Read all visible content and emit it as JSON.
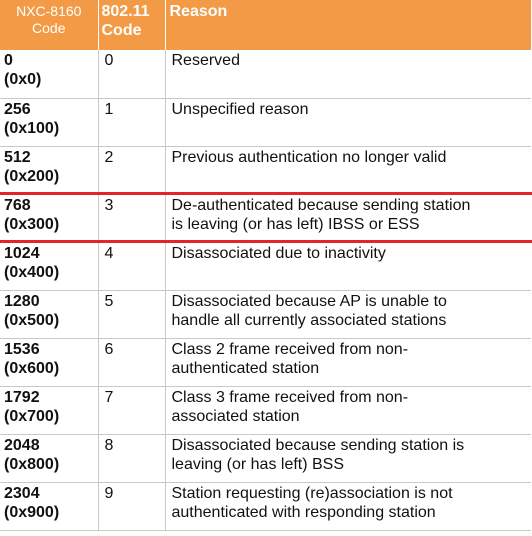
{
  "header": {
    "col1": [
      "NXC-8160",
      "Code"
    ],
    "col2": [
      "802.11",
      "Code"
    ],
    "col3": "Reason"
  },
  "rows": [
    {
      "dec": "0",
      "hex": "(0x0)",
      "code": "0",
      "reason": [
        "Reserved"
      ]
    },
    {
      "dec": "256",
      "hex": "(0x100)",
      "code": "1",
      "reason": [
        "Unspecified reason"
      ]
    },
    {
      "dec": "512",
      "hex": "(0x200)",
      "code": "2",
      "reason": [
        "Previous authentication no longer valid"
      ]
    },
    {
      "dec": "768",
      "hex": "(0x300)",
      "code": "3",
      "reason": [
        "De-authenticated because sending station",
        "is leaving (or has left) IBSS or ESS"
      ]
    },
    {
      "dec": "1024",
      "hex": "(0x400)",
      "code": "4",
      "reason": [
        "Disassociated due to inactivity"
      ]
    },
    {
      "dec": "1280",
      "hex": "(0x500)",
      "code": "5",
      "reason": [
        "Disassociated because AP is unable to",
        "handle all currently associated stations"
      ]
    },
    {
      "dec": "1536",
      "hex": "(0x600)",
      "code": "6",
      "reason": [
        "Class 2 frame received from non-",
        "authenticated station"
      ]
    },
    {
      "dec": "1792",
      "hex": "(0x700)",
      "code": "7",
      "reason": [
        "Class 3 frame received from non-",
        "associated station"
      ]
    },
    {
      "dec": "2048",
      "hex": "(0x800)",
      "code": "8",
      "reason": [
        "Disassociated because sending station is",
        "leaving (or has left) BSS"
      ]
    },
    {
      "dec": "2304",
      "hex": "(0x900)",
      "code": "9",
      "reason": [
        "Station requesting (re)association is not",
        "authenticated with responding station"
      ]
    }
  ],
  "highlight_row_index": 3,
  "colors": {
    "header_bg": "#f39a46",
    "header_text": "#ffffff",
    "highlight": "#e0262b",
    "grid": "#c9c9c9"
  }
}
